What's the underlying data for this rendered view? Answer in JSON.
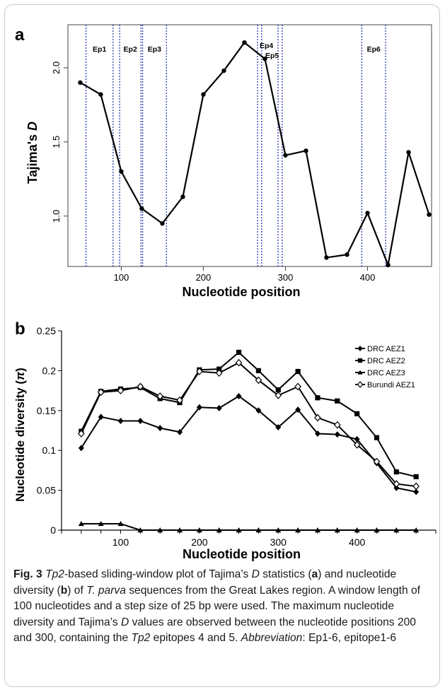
{
  "chart_data": [
    {
      "panel": "a",
      "type": "line",
      "xlabel": "Nucleotide position",
      "ylabel": "Tajima's D",
      "ylabel_main": "Tajima's",
      "ylabel_italic": "D",
      "xlim": [
        35,
        478
      ],
      "ylim": [
        0.66,
        2.29
      ],
      "xticks": [
        100,
        200,
        300,
        400
      ],
      "yticks": [
        1.0,
        1.5,
        2.0
      ],
      "ytick_labels": [
        "1.0",
        "1.5",
        "2.0"
      ],
      "series": [
        {
          "x": [
            50,
            75,
            100,
            125,
            150,
            175,
            200,
            225,
            250,
            275,
            300,
            325,
            350,
            375,
            400,
            425,
            450,
            475
          ],
          "y": [
            1.9,
            1.82,
            1.3,
            1.05,
            0.95,
            1.13,
            1.82,
            1.98,
            2.17,
            2.06,
            1.41,
            1.44,
            0.72,
            0.74,
            1.02,
            0.67,
            1.43,
            1.01
          ]
        }
      ],
      "epitopes": [
        {
          "label": "Ep1",
          "start": 57,
          "end": 90
        },
        {
          "label": "Ep2",
          "start": 98,
          "end": 124
        },
        {
          "label": "Ep3",
          "start": 126,
          "end": 155
        },
        {
          "label": "Ep4",
          "start": 266,
          "end": 271
        },
        {
          "label": "Ep5",
          "start": 291,
          "end": 296
        },
        {
          "label": "Ep6",
          "start": 393,
          "end": 422
        }
      ],
      "grid": false,
      "epitope_line_color": "#1a2aa6"
    },
    {
      "panel": "b",
      "type": "line",
      "xlabel": "Nucleotide position",
      "ylabel": "Nucleotide diversity (π)",
      "ylabel_main": "Nucleotide diversity (",
      "ylabel_italic": "π",
      "ylabel_end": ")",
      "xlim": [
        25,
        500
      ],
      "ylim": [
        0,
        0.25
      ],
      "xticks": [
        100,
        200,
        300,
        400
      ],
      "yticks": [
        0,
        0.05,
        0.1,
        0.15,
        0.2,
        0.25
      ],
      "ytick_labels": [
        "0",
        "0.05",
        "0.1",
        "0.15",
        "0.2",
        "0.25"
      ],
      "x": [
        50,
        75,
        100,
        125,
        150,
        175,
        200,
        225,
        250,
        275,
        300,
        325,
        350,
        375,
        400,
        425,
        450,
        475
      ],
      "series": [
        {
          "name": "DRC AEZ1",
          "marker": "diamond",
          "values": [
            0.103,
            0.142,
            0.137,
            0.137,
            0.128,
            0.123,
            0.154,
            0.153,
            0.168,
            0.15,
            0.129,
            0.151,
            0.121,
            0.12,
            0.114,
            0.084,
            0.053,
            0.048
          ]
        },
        {
          "name": "DRC AEZ2",
          "marker": "square",
          "values": [
            0.124,
            0.174,
            0.177,
            0.179,
            0.165,
            0.16,
            0.201,
            0.202,
            0.223,
            0.2,
            0.176,
            0.199,
            0.166,
            0.162,
            0.146,
            0.116,
            0.073,
            0.067
          ]
        },
        {
          "name": "DRC AEZ3",
          "marker": "triangle",
          "values": [
            0.008,
            0.008,
            0.008,
            0.0,
            0.0,
            0.0,
            0.0,
            0.0,
            0.0,
            0.0,
            0.0,
            0.0,
            0.0,
            0.0,
            0.0,
            0.0,
            0.0,
            0.0
          ]
        },
        {
          "name": "Burundi AEZ1",
          "marker": "open-circle",
          "values": [
            0.121,
            0.173,
            0.175,
            0.18,
            0.168,
            0.163,
            0.199,
            0.197,
            0.21,
            0.188,
            0.169,
            0.18,
            0.141,
            0.132,
            0.107,
            0.086,
            0.058,
            0.055
          ]
        }
      ],
      "legend_position": "top-right",
      "grid": false
    }
  ],
  "caption": {
    "fig_label": "Fig. 3",
    "parts": [
      {
        "t": " "
      },
      {
        "t": "Tp2",
        "i": true
      },
      {
        "t": "-based sliding-window plot of Tajima’s "
      },
      {
        "t": "D",
        "i": true
      },
      {
        "t": " statistics ("
      },
      {
        "t": "a",
        "b": true
      },
      {
        "t": ") and nucleotide diversity ("
      },
      {
        "t": "b",
        "b": true
      },
      {
        "t": ") of "
      },
      {
        "t": "T. parva",
        "i": true
      },
      {
        "t": " sequences from the Great Lakes region. A window length of 100 nucleotides and a step size of 25 bp were used. The maximum nucleotide diversity and Tajima’s "
      },
      {
        "t": "D",
        "i": true
      },
      {
        "t": " values are observed between the nucleotide positions 200 and 300, containing the "
      },
      {
        "t": "Tp2",
        "i": true
      },
      {
        "t": " epitopes 4 and 5. "
      },
      {
        "t": "Abbreviation",
        "i": true
      },
      {
        "t": ": Ep1-6, epitope1-6"
      }
    ]
  }
}
